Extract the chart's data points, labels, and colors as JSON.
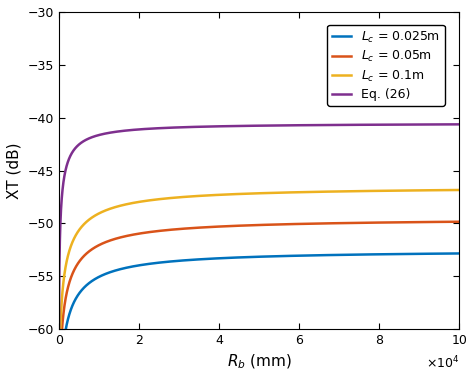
{
  "title": "",
  "xlabel": "R$_b$ (mm)",
  "ylabel": "XT (dB)",
  "xlim": [
    0,
    100000
  ],
  "ylim": [
    -60,
    -30
  ],
  "yticks": [
    -60,
    -55,
    -50,
    -45,
    -40,
    -35,
    -30
  ],
  "xticks": [
    0,
    20000,
    40000,
    60000,
    80000,
    100000
  ],
  "xtick_labels": [
    "0",
    "2",
    "4",
    "6",
    "8",
    "10"
  ],
  "series": [
    {
      "label": "L_c = 0.025m",
      "color": "#0072bd",
      "Lc": 0.025,
      "XT_sat": -52.5,
      "R0": 8000
    },
    {
      "label": "L_c = 0.05m",
      "color": "#d95319",
      "Lc": 0.05,
      "XT_sat": -49.5,
      "R0": 8000
    },
    {
      "label": "L_c = 0.1m",
      "color": "#edb120",
      "Lc": 0.1,
      "XT_sat": -46.5,
      "R0": 8000
    },
    {
      "label": "Eq. (26)",
      "color": "#7e2f8e",
      "XT_sat": -40.5,
      "R0": 3000
    }
  ],
  "legend_loc": "upper right",
  "background_color": "#ffffff",
  "linewidth": 1.8
}
